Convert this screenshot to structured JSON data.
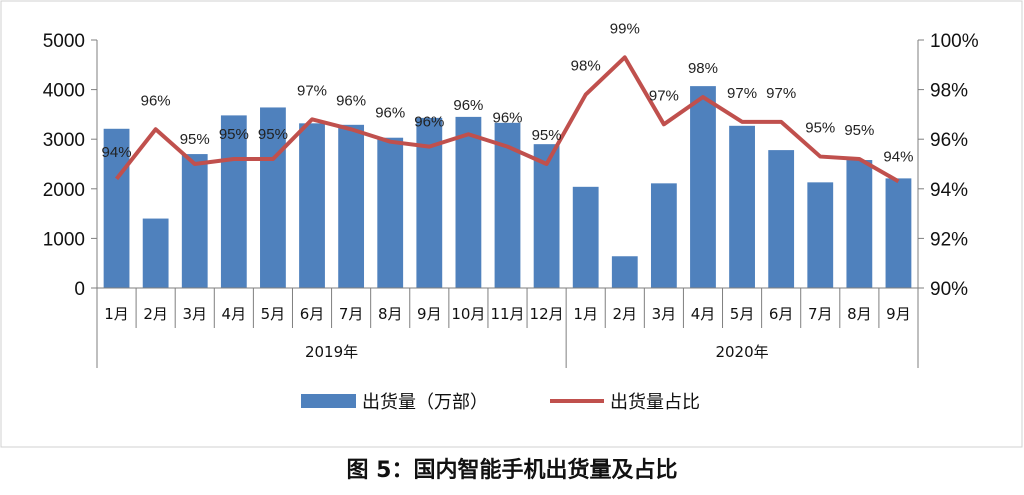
{
  "caption": "图 5：国内智能手机出货量及占比",
  "chart_data": {
    "type": "bar+line",
    "title": "",
    "categories": [
      "1月",
      "2月",
      "3月",
      "4月",
      "5月",
      "6月",
      "7月",
      "8月",
      "9月",
      "10月",
      "11月",
      "12月",
      "1月",
      "2月",
      "3月",
      "4月",
      "5月",
      "6月",
      "7月",
      "8月",
      "9月"
    ],
    "groups": [
      {
        "label": "2019年",
        "count": 12
      },
      {
        "label": "2020年",
        "count": 9
      }
    ],
    "series": [
      {
        "name": "出货量（万部）",
        "type": "bar",
        "axis": "left",
        "color": "#4f81bd",
        "values": [
          3210,
          1400,
          2700,
          3480,
          3640,
          3320,
          3290,
          3030,
          3430,
          3450,
          3330,
          2900,
          2040,
          640,
          2110,
          4070,
          3270,
          2780,
          2130,
          2580,
          2210
        ]
      },
      {
        "name": "出货量占比",
        "type": "line",
        "axis": "right",
        "color": "#c0504d",
        "values": [
          94.4,
          96.4,
          95.0,
          95.2,
          95.2,
          96.8,
          96.4,
          95.9,
          95.7,
          96.2,
          95.7,
          95.0,
          97.8,
          99.3,
          96.6,
          97.7,
          96.7,
          96.7,
          95.3,
          95.2,
          94.3
        ],
        "labels": [
          "94%",
          "96%",
          "95%",
          "95%",
          "95%",
          "97%",
          "96%",
          "96%",
          "96%",
          "96%",
          "96%",
          "95%",
          "98%",
          "99%",
          "97%",
          "98%",
          "97%",
          "97%",
          "95%",
          "95%",
          "94%"
        ]
      }
    ],
    "y_left": {
      "ticks": [
        "0",
        "1000",
        "2000",
        "3000",
        "4000",
        "5000"
      ],
      "ylim": [
        0,
        5000
      ]
    },
    "y_right": {
      "ticks": [
        "90%",
        "92%",
        "94%",
        "96%",
        "98%",
        "100%"
      ],
      "ylim": [
        90,
        100
      ]
    },
    "legend": "bottom",
    "grid": false
  }
}
